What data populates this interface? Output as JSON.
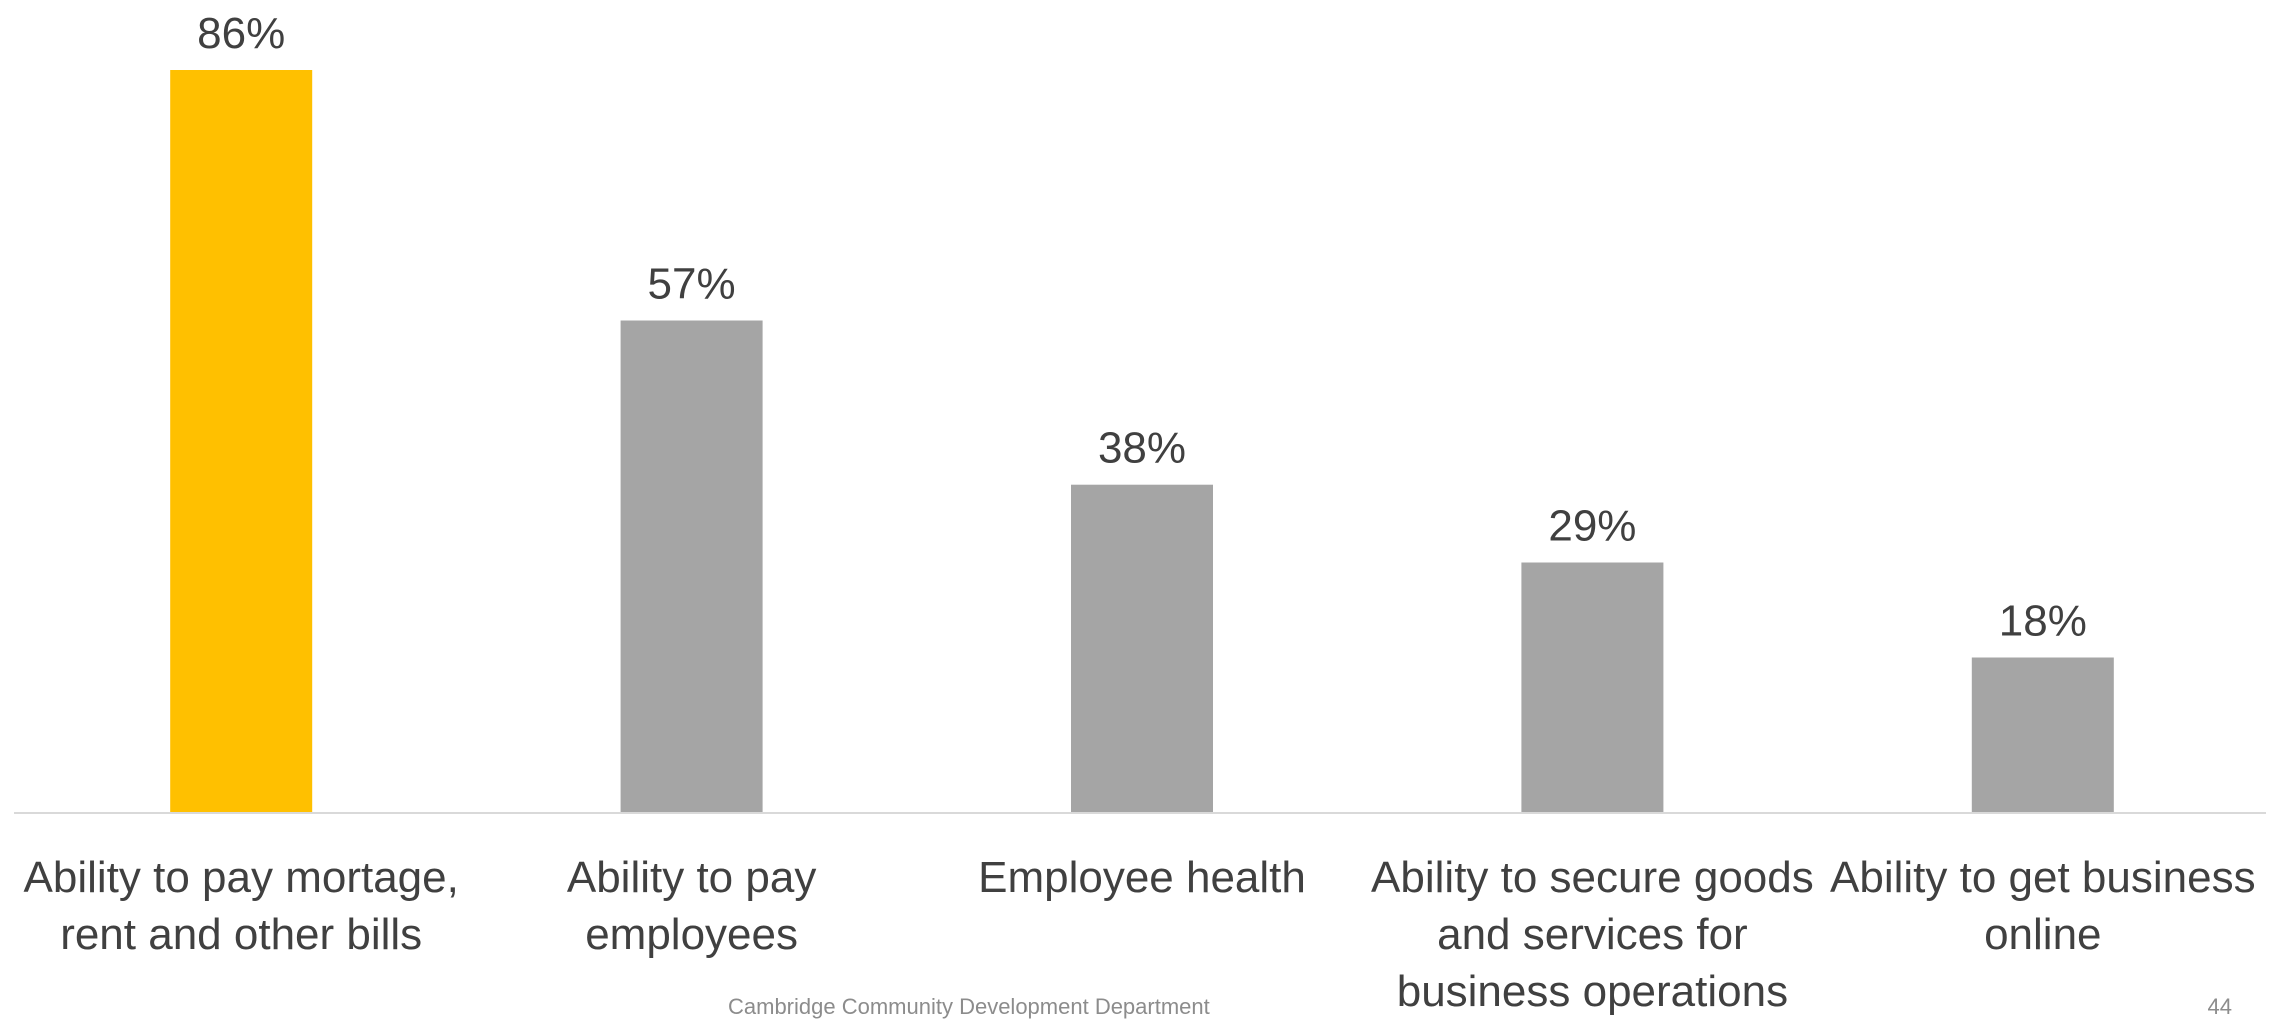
{
  "chart_data": {
    "type": "bar",
    "categories": [
      [
        "Ability to pay mortage,",
        "rent and other bills"
      ],
      [
        "Ability to pay",
        "employees"
      ],
      [
        "Employee health"
      ],
      [
        "Ability to secure goods",
        "and services for",
        "business operations"
      ],
      [
        "Ability to get business",
        "online"
      ]
    ],
    "values": [
      86,
      57,
      38,
      29,
      18
    ],
    "value_labels": [
      "86%",
      "57%",
      "38%",
      "29%",
      "18%"
    ],
    "ylim": [
      0,
      90
    ],
    "grid": false,
    "legend": "none",
    "colors": {
      "highlight": "#FFC000",
      "default": "#A5A5A5",
      "axis": "#D9D9D9"
    },
    "highlight_index": 0
  },
  "footer": {
    "organization": "Cambridge Community Development Department",
    "page_number": "44"
  }
}
